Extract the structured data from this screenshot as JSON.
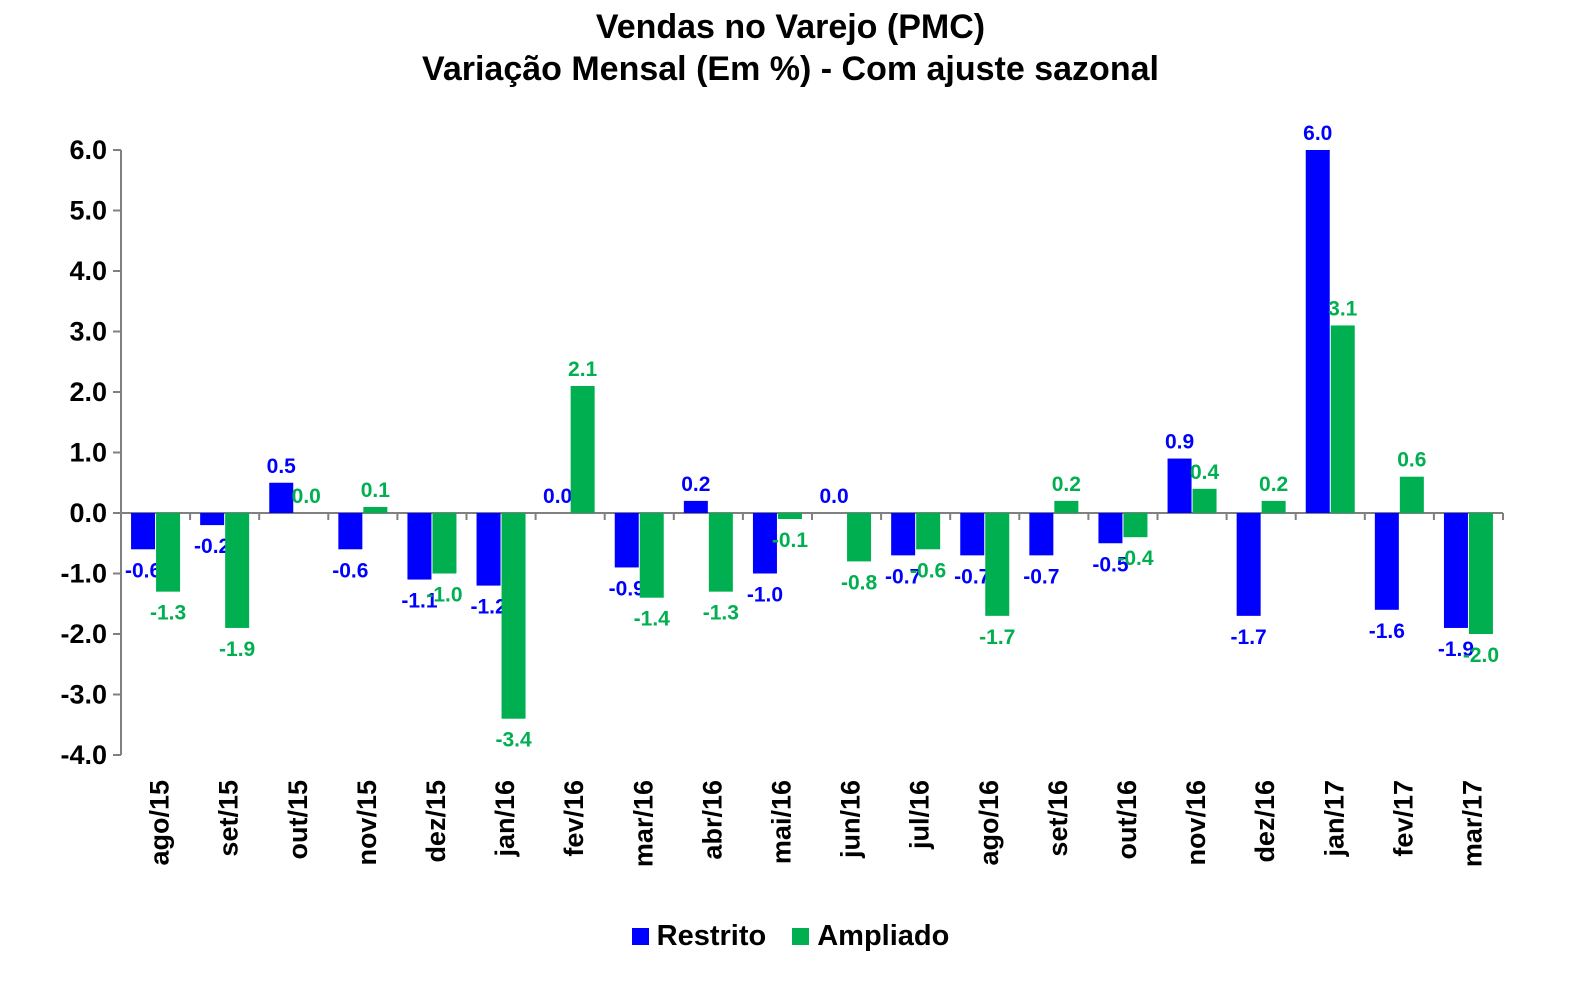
{
  "chart_data": {
    "type": "bar",
    "title": "Vendas no Varejo (PMC)",
    "subtitle": "Variação Mensal (Em %) - Com ajuste sazonal",
    "xlabel": "",
    "ylabel": "",
    "ylim": [
      -4.0,
      6.0
    ],
    "yticks": [
      "6.0",
      "5.0",
      "4.0",
      "3.0",
      "2.0",
      "1.0",
      "0.0",
      "-1.0",
      "-2.0",
      "-3.0",
      "-4.0"
    ],
    "grid": false,
    "legend_position": "bottom",
    "categories": [
      "ago/15",
      "set/15",
      "out/15",
      "nov/15",
      "dez/15",
      "jan/16",
      "fev/16",
      "mar/16",
      "abr/16",
      "mai/16",
      "jun/16",
      "jul/16",
      "ago/16",
      "set/16",
      "out/16",
      "nov/16",
      "dez/16",
      "jan/17",
      "fev/17",
      "mar/17"
    ],
    "series": [
      {
        "name": "Restrito",
        "color": "#0000FF",
        "values": [
          -0.6,
          -0.2,
          0.5,
          -0.6,
          -1.1,
          -1.2,
          0.0,
          -0.9,
          0.2,
          -1.0,
          0.0,
          -0.7,
          -0.7,
          -0.7,
          -0.5,
          0.9,
          -1.7,
          6.0,
          -1.6,
          -1.9
        ],
        "labels": [
          "-0.6",
          "-0.2",
          "0.5",
          "-0.6",
          "-1.1",
          "-1.2",
          "0.0",
          "-0.9",
          "0.2",
          "-1.0",
          "0.0",
          "-0.7",
          "-0.7",
          "-0.7",
          "-0.5",
          "0.9",
          "-1.7",
          "6.0",
          "-1.6",
          "-1.9"
        ]
      },
      {
        "name": "Ampliado",
        "color": "#00B050",
        "values": [
          -1.3,
          -1.9,
          0.0,
          0.1,
          -1.0,
          -3.4,
          2.1,
          -1.4,
          -1.3,
          -0.1,
          -0.8,
          -0.6,
          -1.7,
          0.2,
          -0.4,
          0.4,
          0.2,
          3.1,
          0.6,
          -2.0
        ],
        "labels": [
          "-1.3",
          "-1.9",
          "0.0",
          "0.1",
          "-1.0",
          "-3.4",
          "2.1",
          "-1.4",
          "-1.3",
          "-0.1",
          "-0.8",
          "-0.6",
          "-1.7",
          "0.2",
          "-0.4",
          "0.4",
          "0.2",
          "3.1",
          "0.6",
          "-2.0"
        ]
      }
    ]
  }
}
